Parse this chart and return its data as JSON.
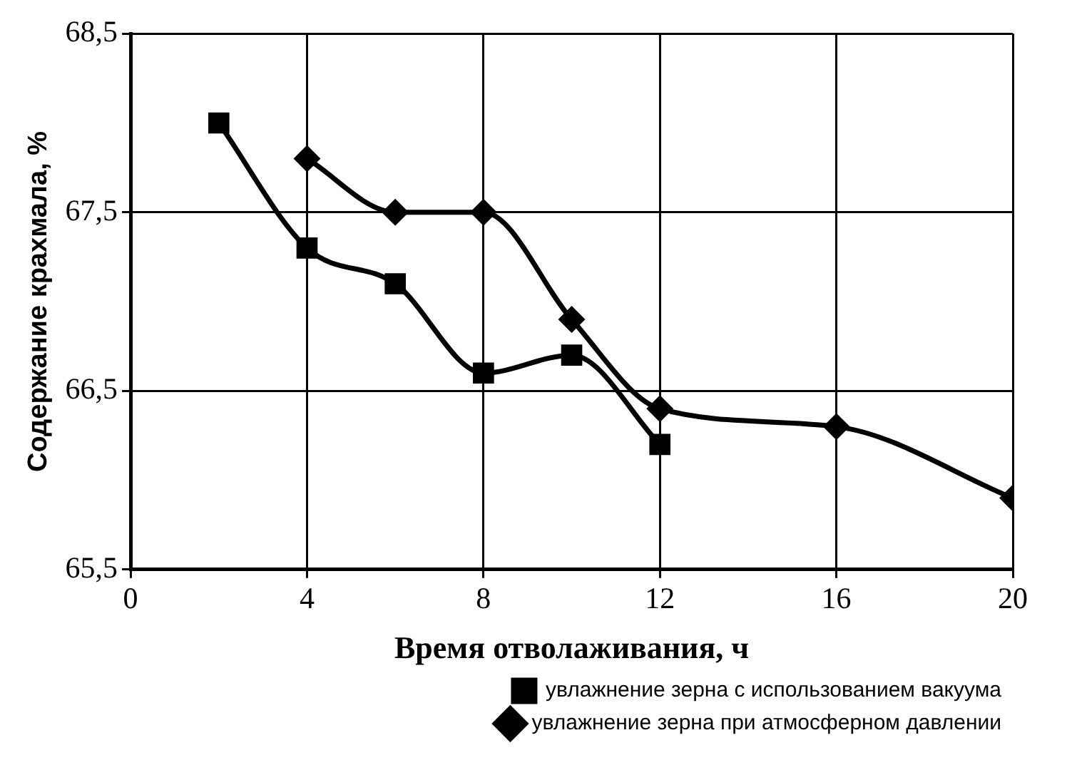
{
  "chart_data": {
    "type": "line",
    "xlabel": "Время отволаживания, ч",
    "ylabel": "Содержание крахмала, %",
    "xlim": [
      0,
      20
    ],
    "xticks": [
      0,
      4,
      8,
      12,
      16,
      20
    ],
    "ylim": [
      65.5,
      68.5
    ],
    "yticks": [
      {
        "value": 65.5,
        "label": "65,5"
      },
      {
        "value": 66.5,
        "label": "66,5"
      },
      {
        "value": 67.5,
        "label": "67,5"
      },
      {
        "value": 68.5,
        "label": "68,5"
      }
    ],
    "grid": true,
    "legend": "bottom right",
    "series": [
      {
        "name": "увлажнение зерна с использованием вакуума",
        "color": "#000000",
        "marker": "square",
        "x": [
          2,
          4,
          6,
          8,
          10,
          12
        ],
        "values": [
          68.0,
          67.3,
          67.1,
          66.6,
          66.7,
          66.2
        ]
      },
      {
        "name": "увлажнение зерна при атмосферном давлении",
        "color": "#000000",
        "marker": "diamond",
        "x": [
          4,
          6,
          8,
          10,
          12,
          16,
          20
        ],
        "values": [
          67.8,
          67.5,
          67.5,
          66.9,
          66.4,
          66.3,
          65.9
        ]
      }
    ]
  }
}
